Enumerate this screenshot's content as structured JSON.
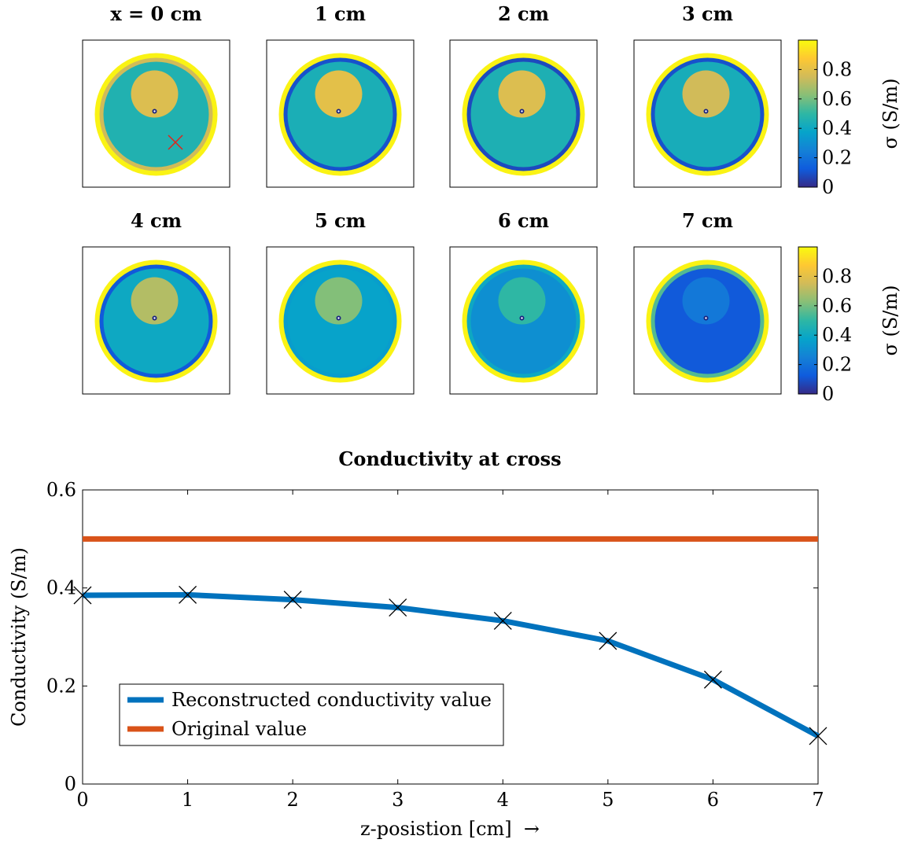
{
  "colors": {
    "reconstructed": "#0072BD",
    "original": "#D95319",
    "cross_marker": "#E0241B",
    "axis": "#000000",
    "parula": [
      "#352A87",
      "#0F5CDD",
      "#1481D6",
      "#06A4CA",
      "#2EB7A4",
      "#87BF77",
      "#D1BB59",
      "#FEC832",
      "#F9FB0E"
    ]
  },
  "maps": {
    "panels": [
      {
        "title": "x = 0 cm",
        "z_cm": 0,
        "inclusion_level": 0.78,
        "background_level": 0.46,
        "rim_inner_level": 0.75,
        "rim_outer_level": 0.98,
        "marker": true
      },
      {
        "title": "1 cm",
        "z_cm": 1,
        "inclusion_level": 0.8,
        "background_level": 0.44,
        "rim_inner_level": 0.1,
        "rim_outer_level": 0.98,
        "marker": false
      },
      {
        "title": "2 cm",
        "z_cm": 2,
        "inclusion_level": 0.78,
        "background_level": 0.45,
        "rim_inner_level": 0.08,
        "rim_outer_level": 0.98,
        "marker": false
      },
      {
        "title": "3 cm",
        "z_cm": 3,
        "inclusion_level": 0.75,
        "background_level": 0.43,
        "rim_inner_level": 0.1,
        "rim_outer_level": 0.98,
        "marker": false
      },
      {
        "title": "4 cm",
        "z_cm": 4,
        "inclusion_level": 0.7,
        "background_level": 0.4,
        "rim_inner_level": 0.12,
        "rim_outer_level": 0.98,
        "marker": false
      },
      {
        "title": "5 cm",
        "z_cm": 5,
        "inclusion_level": 0.62,
        "background_level": 0.37,
        "rim_inner_level": 0.35,
        "rim_outer_level": 0.98,
        "marker": false
      },
      {
        "title": "6 cm",
        "z_cm": 6,
        "inclusion_level": 0.5,
        "background_level": 0.3,
        "rim_inner_level": 0.4,
        "rim_outer_level": 0.98,
        "marker": false
      },
      {
        "title": "7 cm",
        "z_cm": 7,
        "inclusion_level": 0.22,
        "background_level": 0.12,
        "rim_inner_level": 0.55,
        "rim_outer_level": 0.98,
        "marker": false
      }
    ],
    "colorbar": {
      "label": "σ (S/m)",
      "ticks": [
        0,
        0.2,
        0.4,
        0.6,
        0.8
      ],
      "tick_labels": [
        "0",
        "0.2",
        "0.4",
        "0.6",
        "0.8"
      ],
      "range": [
        0,
        1
      ]
    }
  },
  "chart_data": {
    "type": "line",
    "title": "Conductivity at cross",
    "xlabel": "z-posistion [cm]  →",
    "ylabel": "Conductivity (S/m)",
    "xlim": [
      0,
      7
    ],
    "ylim": [
      0,
      0.6
    ],
    "xticks": [
      0,
      1,
      2,
      3,
      4,
      5,
      6,
      7
    ],
    "yticks": [
      0,
      0.2,
      0.4,
      0.6
    ],
    "ytick_labels": [
      "0",
      "0.2",
      "0.4",
      "0.6"
    ],
    "grid": false,
    "legend_position": "bottom-left",
    "series": [
      {
        "name": "Reconstructed conductivity value",
        "x": [
          0,
          1,
          2,
          3,
          4,
          5,
          6,
          7
        ],
        "values": [
          0.385,
          0.386,
          0.376,
          0.36,
          0.333,
          0.292,
          0.213,
          0.098
        ],
        "marker": "x"
      },
      {
        "name": "Original value",
        "x": [
          0,
          7
        ],
        "values": [
          0.5,
          0.5
        ],
        "marker": "none"
      }
    ]
  }
}
